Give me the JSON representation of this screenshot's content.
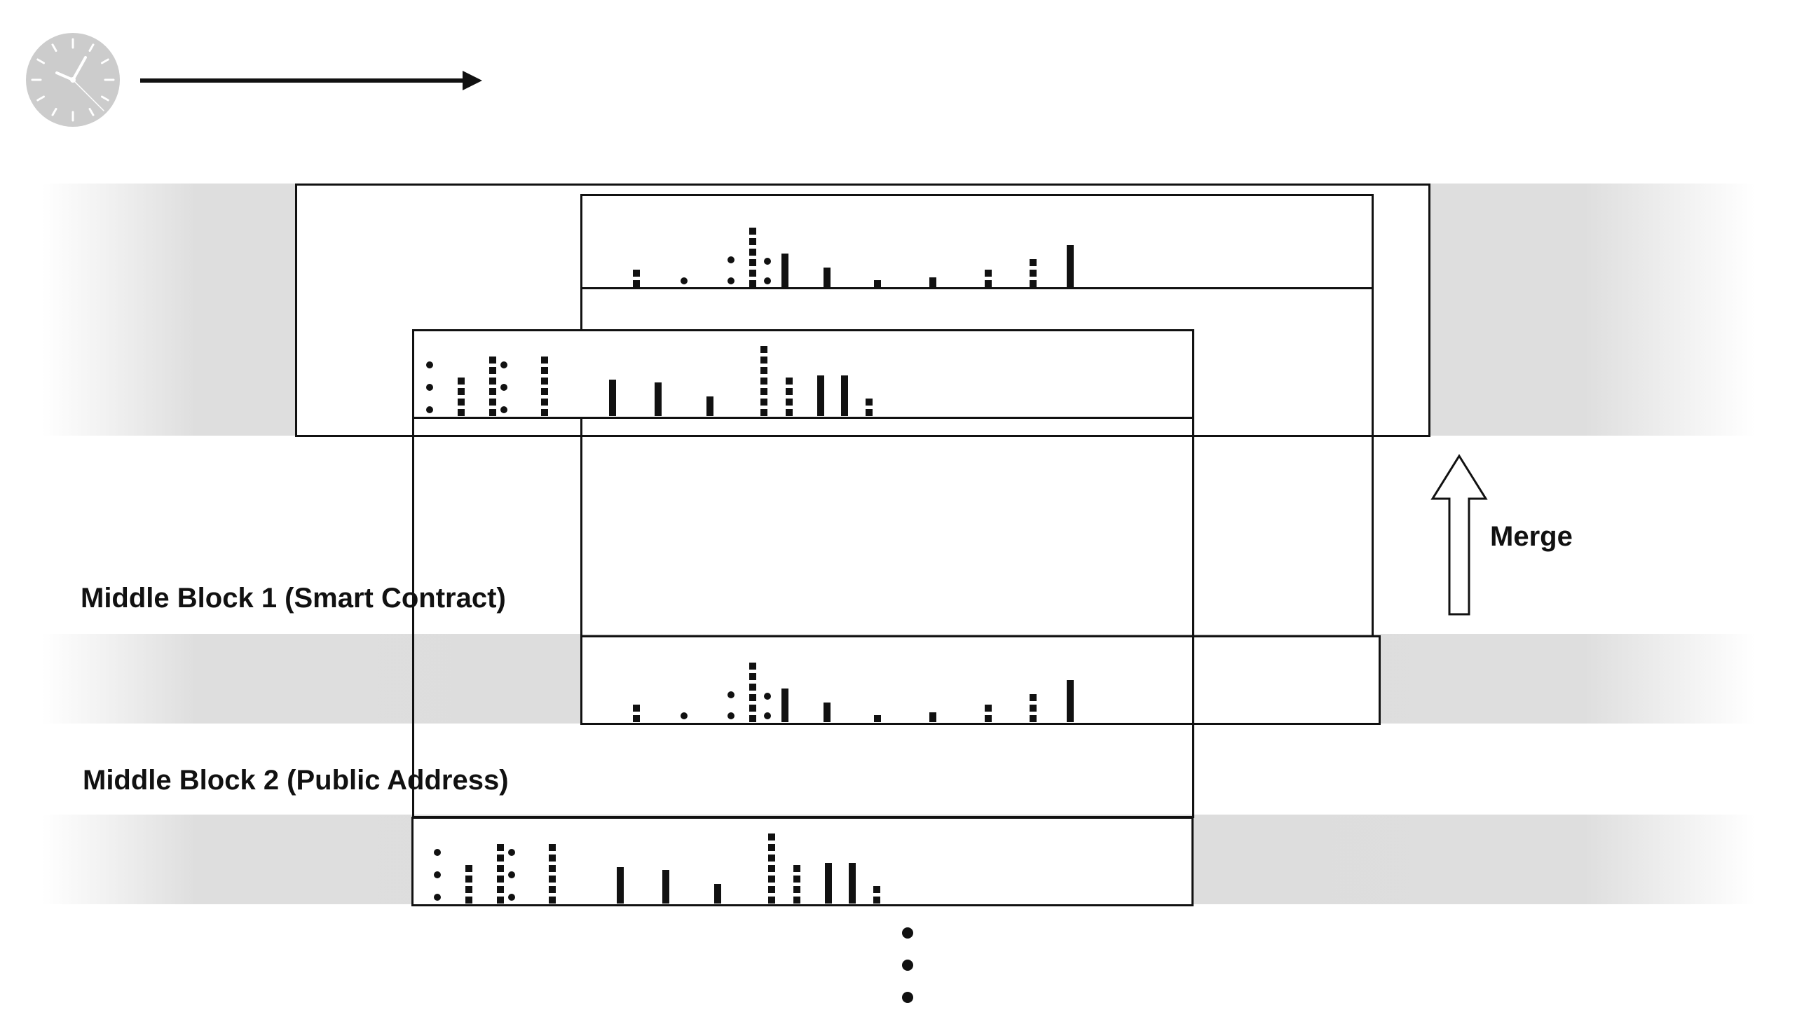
{
  "labels": {
    "middle_block_1": "Middle Block 1 (Smart Contract)",
    "middle_block_2": "Middle Block 2 (Public Address)",
    "merge": "Merge"
  },
  "icons": {
    "clock": "clock-icon",
    "time_arrow": "arrow-right-icon",
    "merge_arrow": "arrow-up-icon",
    "continuation": "vertical-ellipsis-icon"
  },
  "colors": {
    "ink": "#111111",
    "band": "#dddddd",
    "clock_face": "#cccccc",
    "background": "#ffffff"
  }
}
